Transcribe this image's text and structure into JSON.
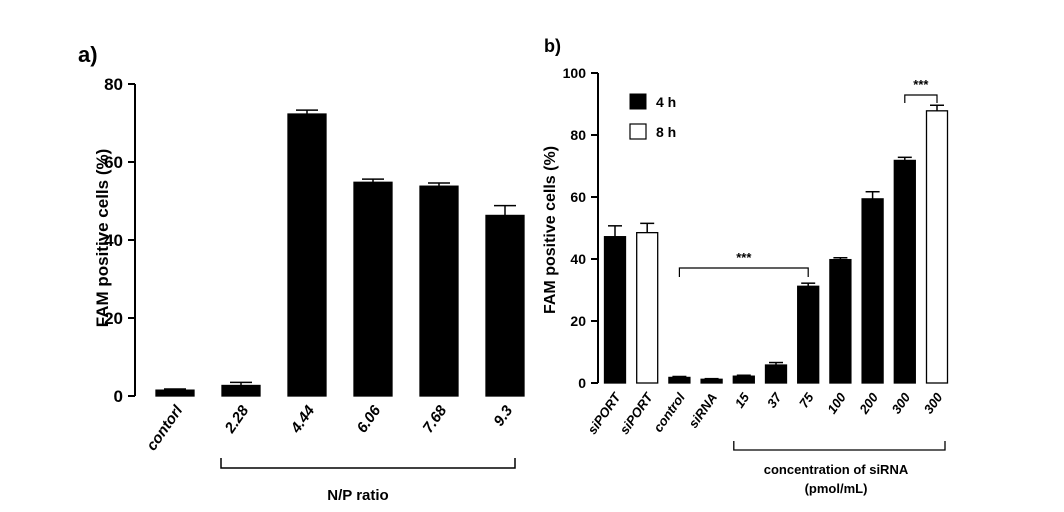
{
  "chart_data": [
    {
      "panel_label": "a)",
      "type": "bar",
      "categories": [
        "contorl",
        "2.28",
        "4.44",
        "6.06",
        "7.68",
        "9.3"
      ],
      "values": [
        1.5,
        2.7,
        72.3,
        54.8,
        53.8,
        46.3
      ],
      "errors": [
        0.3,
        0.8,
        1.0,
        0.8,
        0.8,
        2.5
      ],
      "title": "",
      "xlabel": "N/P ratio",
      "ylabel": "FAM positive cells (%)",
      "ylim": [
        0,
        80
      ],
      "yticks": [
        0,
        20,
        40,
        60,
        80
      ],
      "bracket_label": "N/P ratio",
      "color": "#000000"
    },
    {
      "panel_label": "b)",
      "type": "bar",
      "categories": [
        "siPORT",
        "siPORT",
        "control",
        "siRNA",
        "15",
        "37",
        "75",
        "100",
        "200",
        "300",
        "300"
      ],
      "values": [
        47.2,
        48.5,
        1.8,
        1.2,
        2.2,
        5.8,
        31.2,
        39.8,
        59.4,
        71.8,
        87.8
      ],
      "errors": [
        3.5,
        3.0,
        0.3,
        0.2,
        0.3,
        0.8,
        1.0,
        0.6,
        2.3,
        1.0,
        1.8
      ],
      "series_index": [
        0,
        1,
        0,
        0,
        0,
        0,
        0,
        0,
        0,
        0,
        1
      ],
      "series": [
        {
          "name": "4 h",
          "color": "#000000"
        },
        {
          "name": "8 h",
          "color": "#ffffff"
        }
      ],
      "title": "",
      "xlabel": "concentration of siRNA",
      "xlabel2": "(pmol/mL)",
      "ylabel": "FAM positive cells (%)",
      "ylim": [
        0,
        100
      ],
      "yticks": [
        0,
        20,
        40,
        60,
        80,
        100
      ],
      "legend_position": "top-left",
      "significance": [
        {
          "label": "***",
          "from": 2,
          "to": 6
        },
        {
          "label": "***",
          "from": 9,
          "to": 10
        }
      ]
    }
  ]
}
